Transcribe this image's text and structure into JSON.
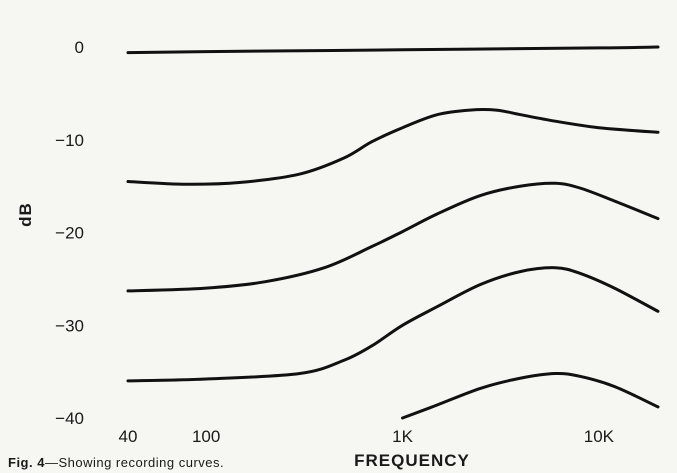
{
  "figure": {
    "caption_prefix": "Fig. 4",
    "caption_text": "—Showing recording curves."
  },
  "chart_data": {
    "type": "line",
    "title": "",
    "xlabel": "FREQUENCY",
    "ylabel": "dB",
    "x_scale": "log",
    "xlim": [
      40,
      20000
    ],
    "ylim": [
      -40,
      0
    ],
    "x_ticks": [
      {
        "value": 40,
        "label": "40"
      },
      {
        "value": 100,
        "label": "100"
      },
      {
        "value": 1000,
        "label": "1K"
      },
      {
        "value": 10000,
        "label": "10K"
      }
    ],
    "y_ticks": [
      {
        "value": 0,
        "label": "0"
      },
      {
        "value": -10,
        "label": "−10"
      },
      {
        "value": -20,
        "label": "−20"
      },
      {
        "value": -30,
        "label": "−30"
      },
      {
        "value": -40,
        "label": "−40"
      }
    ],
    "grid": false,
    "legend": "none",
    "line_color": "#111111",
    "series": [
      {
        "points": [
          [
            40,
            -0.6
          ],
          [
            100,
            -0.5
          ],
          [
            1000,
            -0.3
          ],
          [
            10000,
            -0.1
          ],
          [
            20000,
            0
          ]
        ]
      },
      {
        "points": [
          [
            40,
            -14.5
          ],
          [
            80,
            -14.8
          ],
          [
            150,
            -14.6
          ],
          [
            300,
            -13.7
          ],
          [
            500,
            -12.0
          ],
          [
            700,
            -10.2
          ],
          [
            1000,
            -8.7
          ],
          [
            1500,
            -7.3
          ],
          [
            2200,
            -6.8
          ],
          [
            3000,
            -6.8
          ],
          [
            4000,
            -7.3
          ],
          [
            6000,
            -8.0
          ],
          [
            10000,
            -8.7
          ],
          [
            20000,
            -9.2
          ]
        ]
      },
      {
        "points": [
          [
            40,
            -26.3
          ],
          [
            100,
            -26.0
          ],
          [
            200,
            -25.3
          ],
          [
            400,
            -23.8
          ],
          [
            700,
            -21.5
          ],
          [
            1000,
            -19.9
          ],
          [
            1500,
            -18.0
          ],
          [
            2500,
            -16.0
          ],
          [
            4000,
            -15.0
          ],
          [
            6000,
            -14.7
          ],
          [
            8000,
            -15.2
          ],
          [
            12000,
            -16.6
          ],
          [
            20000,
            -18.5
          ]
        ]
      },
      {
        "points": [
          [
            40,
            -36.0
          ],
          [
            100,
            -35.8
          ],
          [
            300,
            -35.2
          ],
          [
            500,
            -33.8
          ],
          [
            700,
            -32.2
          ],
          [
            1000,
            -30.0
          ],
          [
            1500,
            -28.0
          ],
          [
            2500,
            -25.6
          ],
          [
            4000,
            -24.2
          ],
          [
            6000,
            -23.8
          ],
          [
            8000,
            -24.4
          ],
          [
            12000,
            -26.0
          ],
          [
            20000,
            -28.5
          ]
        ]
      },
      {
        "points": [
          [
            1000,
            -40.0
          ],
          [
            1500,
            -38.6
          ],
          [
            2500,
            -36.8
          ],
          [
            4000,
            -35.7
          ],
          [
            6000,
            -35.2
          ],
          [
            8000,
            -35.5
          ],
          [
            12000,
            -36.6
          ],
          [
            20000,
            -38.8
          ]
        ]
      }
    ]
  }
}
